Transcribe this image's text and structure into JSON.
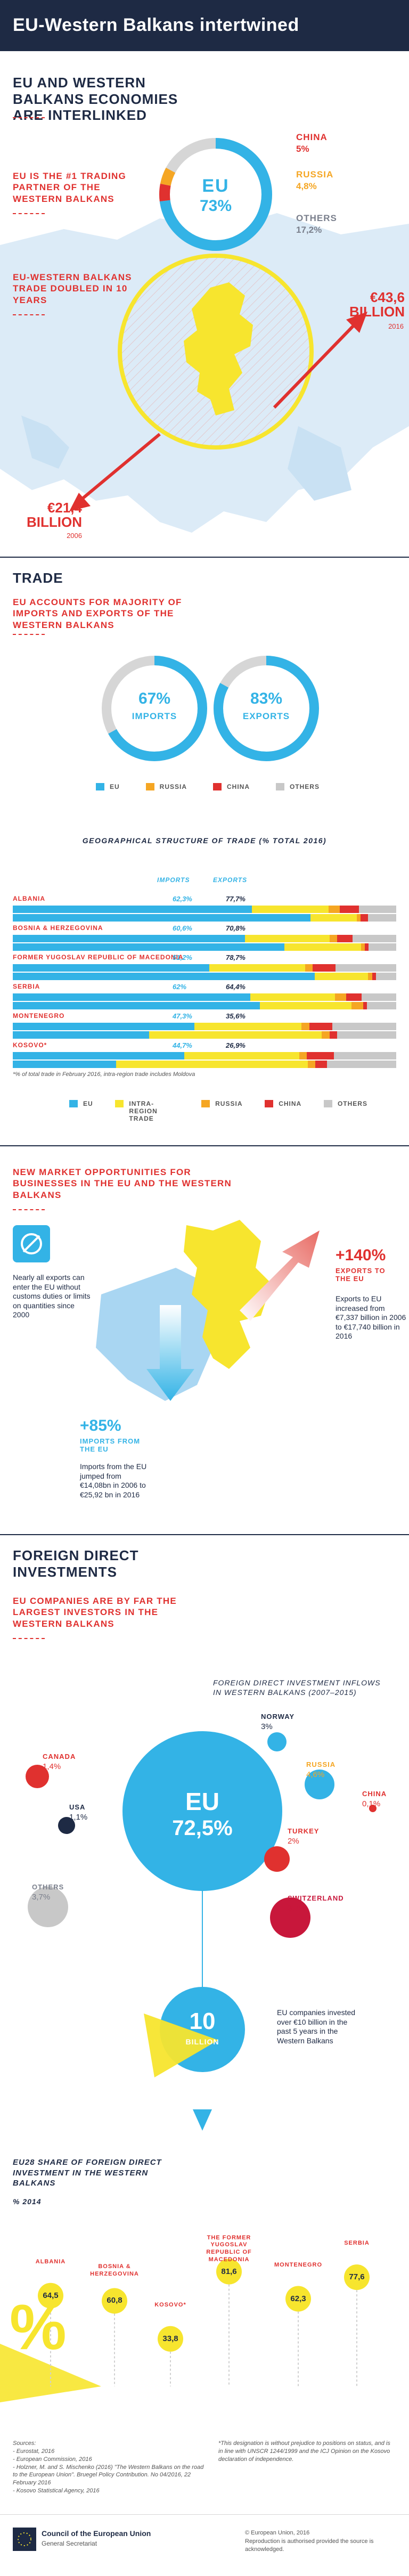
{
  "header": {
    "title": "EU-Western Balkans intertwined"
  },
  "economies": {
    "title": "EU AND WESTERN BALKANS ECONOMIES ARE INTERLINKED",
    "partner_text": "EU IS THE #1 TRADING PARTNER OF THE WESTERN BALKANS",
    "donut": {
      "label": "EU",
      "value": "73%"
    },
    "china": {
      "label": "CHINA",
      "value": "5%"
    },
    "russia": {
      "label": "RUSSIA",
      "value": "4,8%"
    },
    "others": {
      "label": "OTHERS",
      "value": "17,2%"
    },
    "doubled_text": "EU-WESTERN BALKANS TRADE DOUBLED IN 10 YEARS",
    "high": {
      "value": "€43,6 BILLION",
      "year": "2016"
    },
    "low": {
      "value": "€21,4 BILLION",
      "year": "2006"
    },
    "colors": {
      "eu": "#33b3e6",
      "china": "#e0312f",
      "russia": "#f5a623",
      "others": "#c8c8c8",
      "yellow": "#f7e52e",
      "navy": "#1e2a44"
    }
  },
  "trade": {
    "title": "TRADE",
    "subtitle": "EU ACCOUNTS FOR MAJORITY OF IMPORTS AND EXPORTS OF THE WESTERN BALKANS",
    "imports": {
      "value": "67%",
      "label": "IMPORTS",
      "fraction": 0.67
    },
    "exports": {
      "value": "83%",
      "label": "EXPORTS",
      "fraction": 0.83
    },
    "legend": [
      "EU",
      "RUSSIA",
      "CHINA",
      "OTHERS"
    ]
  },
  "structure": {
    "title": "GEOGRAPHICAL STRUCTURE OF TRADE (% TOTAL 2016)",
    "col_imports": "IMPORTS",
    "col_exports": "EXPORTS",
    "rows": [
      {
        "country": "ALBANIA",
        "imports": "62,3%",
        "exports": "77,7%"
      },
      {
        "country": "BOSNIA & HERZEGOVINA",
        "imports": "60,6%",
        "exports": "70,8%"
      },
      {
        "country": "FORMER YUGOSLAV REPUBLIC OF MACEDONIA",
        "imports": "51,2%",
        "exports": "78,7%"
      },
      {
        "country": "SERBIA",
        "imports": "62%",
        "exports": "64,4%"
      },
      {
        "country": "MONTENEGRO",
        "imports": "47,3%",
        "exports": "35,6%"
      },
      {
        "country": "KOSOVO*",
        "imports": "44,7%",
        "exports": "26,9%"
      }
    ],
    "footnote": "*% of total trade in February 2016, intra-region trade includes Moldova",
    "legend": [
      "EU",
      "INTRA-REGION TRADE",
      "RUSSIA",
      "CHINA",
      "OTHERS"
    ]
  },
  "opportunities": {
    "title": "NEW MARKET OPPORTUNITIES FOR BUSINESSES IN THE EU AND THE WESTERN BALKANS",
    "exports_pct": "+140%",
    "exports_label": "EXPORTS TO THE EU",
    "exports_text": "Exports to EU increased from €7,337 billion in 2006 to €17,740 billion in 2016",
    "customs_text": "Nearly all exports can enter the EU without customs duties or limits on quantities since 2000",
    "imports_pct": "+85%",
    "imports_label": "IMPORTS FROM THE EU",
    "imports_text": "Imports from the EU jumped from €14,08bn in 2006 to €25,92 bn in 2016"
  },
  "fdi": {
    "title": "FOREIGN DIRECT INVESTMENTS",
    "subtitle": "EU COMPANIES ARE BY FAR THE LARGEST INVESTORS IN THE WESTERN BALKANS",
    "inflows_title": "FOREIGN DIRECT INVESTMENT INFLOWS IN WESTERN BALKANS (2007–2015)",
    "eu": {
      "label": "EU",
      "value": "72,5%"
    },
    "norway": {
      "label": "NORWAY",
      "value": "3%"
    },
    "russia": {
      "label": "RUSSIA",
      "value": "4,6%"
    },
    "china": {
      "label": "CHINA",
      "value": "0,1%"
    },
    "turkey": {
      "label": "TURKEY",
      "value": "2%"
    },
    "switzerland": {
      "label": "SWITZERLAND",
      "value": "3,7%"
    },
    "canada": {
      "label": "CANADA",
      "value": "1,4%"
    },
    "usa": {
      "label": "USA",
      "value": "1,1%"
    },
    "others": {
      "label": "OTHERS",
      "value": "3,7%"
    },
    "billion_value": "10",
    "billion_label": "BILLION",
    "billion_text": "EU companies invested over €10 billion in the past 5 years in the Western Balkans"
  },
  "share": {
    "title": "EU28 SHARE OF FOREIGN DIRECT INVESTMENT IN THE WESTERN BALKANS",
    "subtitle": "% 2014",
    "percent_symbol": "%",
    "countries": [
      {
        "name": "ALBANIA",
        "value": "64,5"
      },
      {
        "name": "BOSNIA & HERZEGOVINA",
        "value": "60,8"
      },
      {
        "name": "KOSOVO*",
        "value": "33,8"
      },
      {
        "name": "THE FORMER YUGOSLAV REPUBLIC OF MACEDONIA",
        "value": "81,6"
      },
      {
        "name": "MONTENEGRO",
        "value": "62,3"
      },
      {
        "name": "SERBIA",
        "value": "77,6"
      }
    ]
  },
  "sources": {
    "title": "Sources:",
    "lines": [
      "- Eurostat, 2016",
      "- European Commission, 2016",
      "- Holzner, M. and S. Mischenko (2016) \"The Western Balkans on the road to the European Union\". Bruegel Policy Contribution. No 04/2016, 22 February 2016",
      "- Kosovo Statistical Agency, 2016"
    ],
    "note": "*This designation is without prejudice to positions on status, and is in line with UNSCR 1244/1999 and the ICJ Opinion on the Kosovo declaration of independence."
  },
  "footer": {
    "org": "Council of the European Union",
    "dept": "General Secretariat",
    "copyright": "© European Union, 2016",
    "reproduction": "Reproduction is authorised provided the source is acknowledged."
  }
}
